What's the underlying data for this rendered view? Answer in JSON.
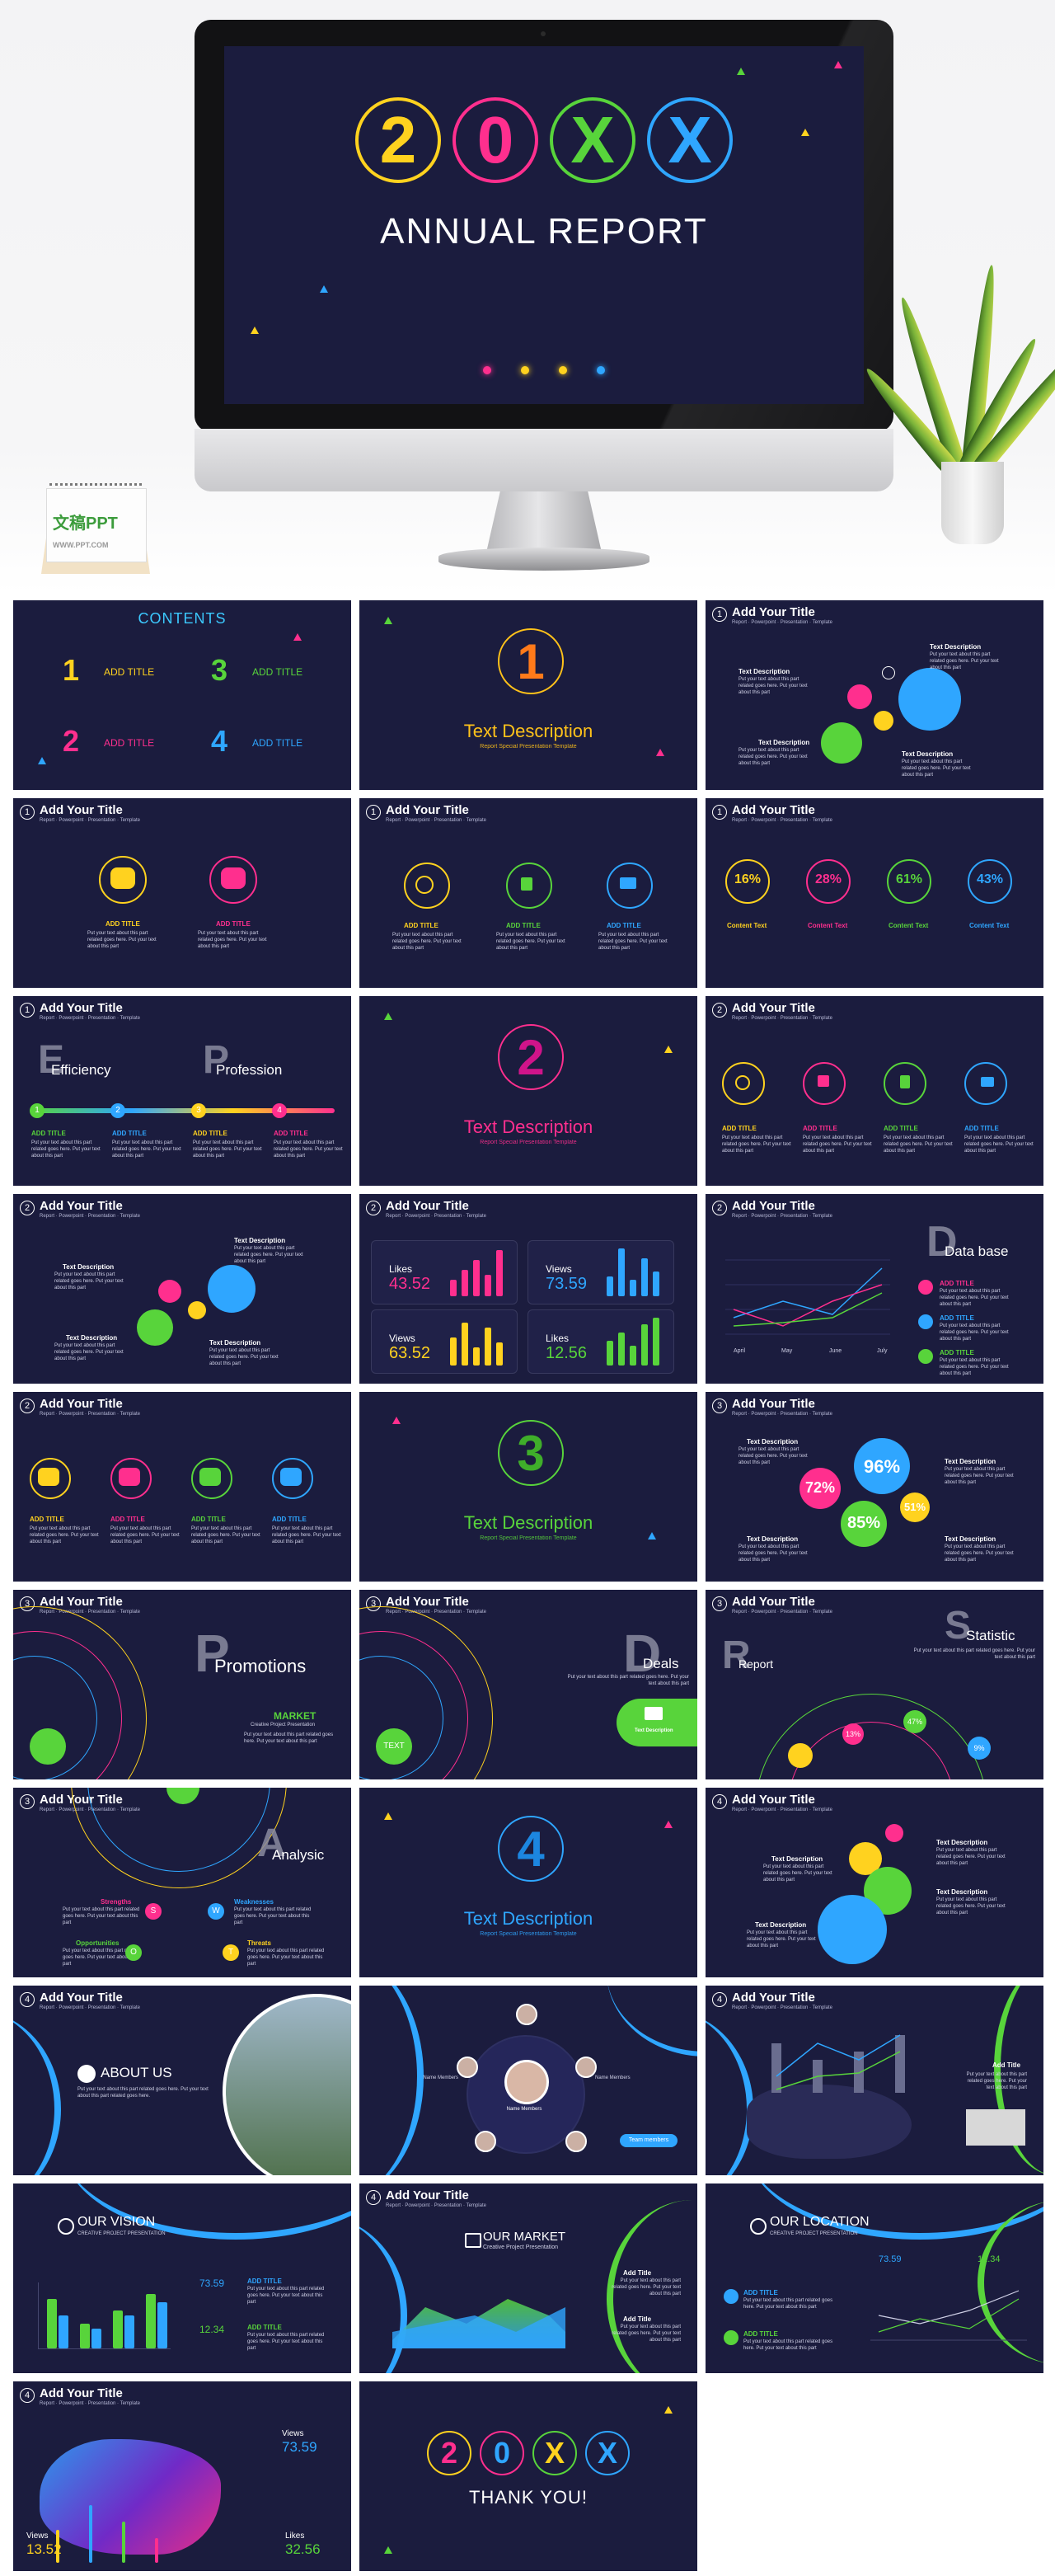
{
  "hero": {
    "digits": [
      "2",
      "0",
      "X",
      "X"
    ],
    "digit_colors": [
      "#ffd21f",
      "#ff2f8e",
      "#58d43b",
      "#2fa6ff"
    ],
    "title": "ANNUAL  REPORT",
    "calendar_logo": "文稿PPT",
    "calendar_logo_small": "WWW.PPT.COM"
  },
  "contents": {
    "title": "CONTENTS",
    "items": [
      {
        "num": "1",
        "label": "ADD TITLE",
        "color": "#ffd21f"
      },
      {
        "num": "3",
        "label": "ADD TITLE",
        "color": "#58d43b"
      },
      {
        "num": "2",
        "label": "ADD TITLE",
        "color": "#ff2f8e"
      },
      {
        "num": "4",
        "label": "ADD TITLE",
        "color": "#2fa6ff"
      }
    ]
  },
  "common": {
    "add_your_title": "Add Your Title",
    "subtitle": "Report · Powerpoint · Presentation · Template",
    "add_title": "ADD TITLE",
    "text_description": "Text Description",
    "body": "Put your text about this part related goes here. Put your text about this part",
    "section_sub": "Report Special Presentation Template",
    "content_text": "Content Text"
  },
  "sections": [
    {
      "num": "1",
      "color": "#ffc21a"
    },
    {
      "num": "2",
      "color": "#ff2f8e"
    },
    {
      "num": "3",
      "color": "#58d43b"
    },
    {
      "num": "4",
      "color": "#2fa6ff"
    }
  ],
  "progress": {
    "values": [
      "16%",
      "28%",
      "61%",
      "43%"
    ],
    "colors": [
      "#ffd21f",
      "#ff2f8e",
      "#58d43b",
      "#2fa6ff"
    ]
  },
  "timeline": {
    "word1": "Efficiency",
    "letter1": "E",
    "word2": "Profession",
    "letter2": "P",
    "nums": [
      "1",
      "2",
      "3",
      "4"
    ]
  },
  "stats": {
    "likes_label": "Likes",
    "likes_value": "43.52",
    "views_label": "Views",
    "views_value": "73.59",
    "views2_value": "63.52",
    "likes2_value": "12.56"
  },
  "database": {
    "letter": "D",
    "word": "Data base",
    "months": [
      "April",
      "May",
      "June",
      "July"
    ]
  },
  "bubbles": {
    "values": [
      "96%",
      "72%",
      "51%",
      "85%"
    ]
  },
  "promotions": {
    "letter": "P",
    "word": "Promotions",
    "market": "MARKET",
    "market_sub": "Creative Project Presentation"
  },
  "deals": {
    "letter": "D",
    "word": "Deals",
    "text_btn": "TEXT"
  },
  "statistic": {
    "letter1": "R",
    "word1": "Report",
    "letter2": "S",
    "word2": "Statistic",
    "values": [
      "13%",
      "47%",
      "9%"
    ]
  },
  "analysis": {
    "letter": "A",
    "word": "Analysic",
    "swot": [
      {
        "title": "Strengths",
        "letter": "S",
        "color": "#ff2f8e"
      },
      {
        "title": "Weaknesses",
        "letter": "W",
        "color": "#2fa6ff"
      },
      {
        "title": "Opportunities",
        "letter": "O",
        "color": "#58d43b"
      },
      {
        "title": "Threats",
        "letter": "T",
        "color": "#ffd21f"
      }
    ]
  },
  "about": {
    "title": "ABOUT US",
    "body": "Put your text about this part related goes here. Put your text about this part related goes here."
  },
  "team": {
    "center_name": "Name Members",
    "member": "Name Members",
    "button": "Team members"
  },
  "vision": {
    "title": "OUR VISION",
    "sub": "CREATIVE PROJECT PRESENTATION",
    "v1": "73.59",
    "v2": "12.34"
  },
  "market": {
    "title": "OUR MARKET",
    "sub": "Creative Project Presentation",
    "side": "Add Title"
  },
  "location": {
    "title": "OUR LOCATION",
    "sub": "CREATIVE PROJECT PRESENTATION",
    "v1": "73.59",
    "v2": "12.34"
  },
  "mapstats": {
    "views_label": "Views",
    "views_value": "73.59",
    "views2_value": "13.52",
    "likes_label": "Likes",
    "likes_value": "32.56"
  },
  "thanks": {
    "digits": [
      "2",
      "0",
      "X",
      "X"
    ],
    "text": "THANK YOU!"
  }
}
